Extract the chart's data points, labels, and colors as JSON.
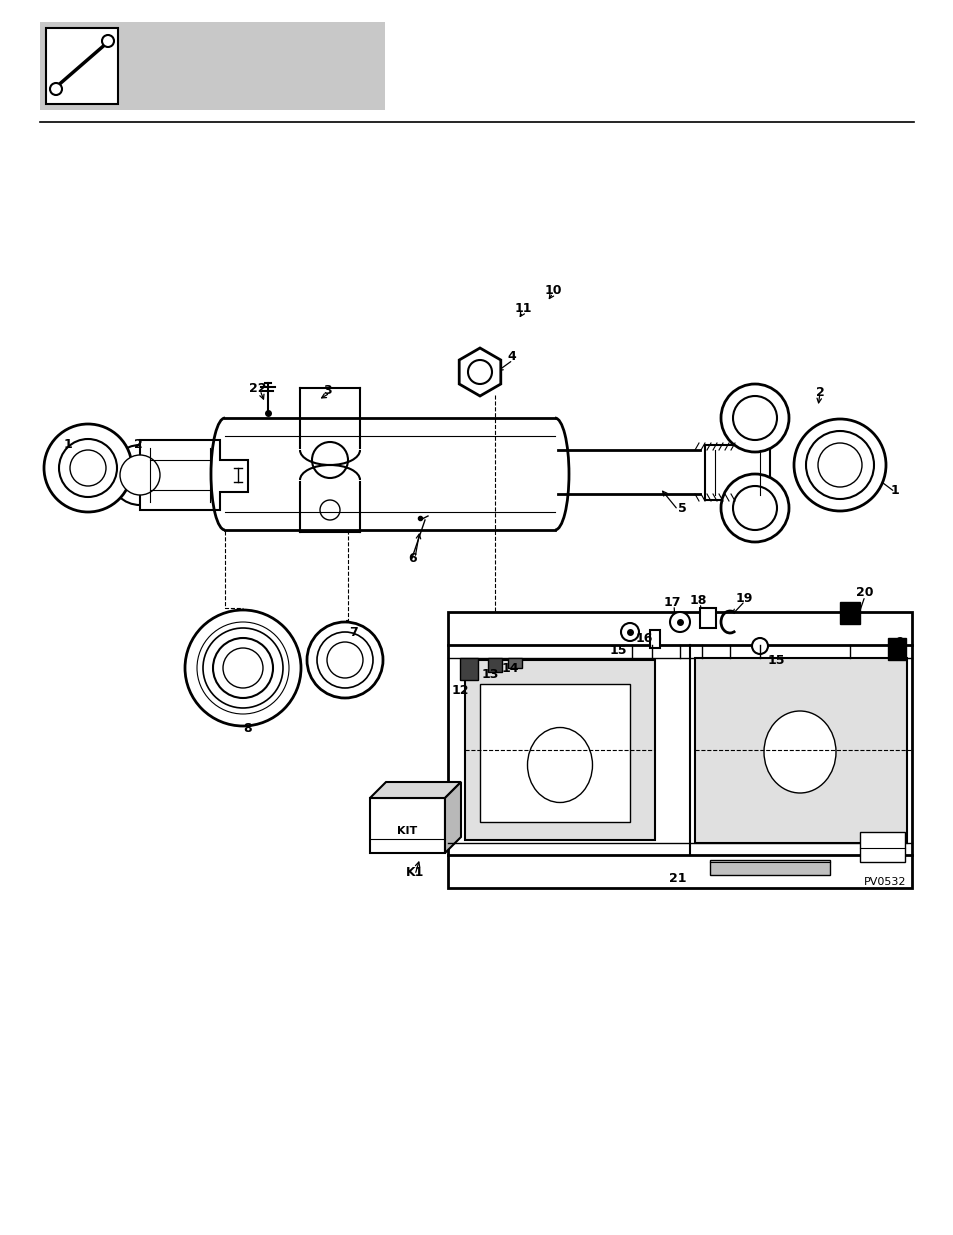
{
  "bg_color": "#ffffff",
  "header_bg": "#c8c8c8",
  "pv_code": "PV0532",
  "line_color": "#000000"
}
